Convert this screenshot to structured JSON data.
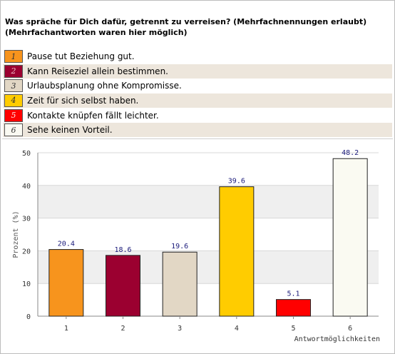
{
  "question": {
    "line1": "Was spräche für Dich dafür, getrennt zu verreisen? (Mehrfachnennungen erlaubt)",
    "line2": "(Mehrfachantworten waren hier möglich)"
  },
  "legend": [
    {
      "num": "1",
      "label": "Pause tut Beziehung gut.",
      "color": "#f7941d"
    },
    {
      "num": "2",
      "label": "Kann Reiseziel allein bestimmen.",
      "color": "#9b0030"
    },
    {
      "num": "3",
      "label": "Urlaubsplanung ohne Kompromisse.",
      "color": "#e2d7c5"
    },
    {
      "num": "4",
      "label": "Zeit für sich selbst haben.",
      "color": "#ffcc00"
    },
    {
      "num": "5",
      "label": "Kontakte knüpfen fällt leichter.",
      "color": "#ff0000"
    },
    {
      "num": "6",
      "label": "Sehe keinen Vorteil.",
      "color": "#fafaf2"
    }
  ],
  "chart_data": {
    "type": "bar",
    "categories": [
      "1",
      "2",
      "3",
      "4",
      "5",
      "6"
    ],
    "values": [
      20.4,
      18.6,
      19.6,
      39.6,
      5.1,
      48.2
    ],
    "data_labels": [
      "20.4",
      "18.6",
      "19.6",
      "39.6",
      "5.1",
      "48.2"
    ],
    "colors": [
      "#f7941d",
      "#9b0030",
      "#e2d7c5",
      "#ffcc00",
      "#ff0000",
      "#fafaf2"
    ],
    "xlabel": "Antwortmöglichkeiten",
    "ylabel": "Prozent (%)",
    "ylim": [
      0,
      50
    ],
    "yticks": [
      "0",
      "10",
      "20",
      "30",
      "40",
      "50"
    ],
    "grid": "alternating horizontal bands"
  }
}
